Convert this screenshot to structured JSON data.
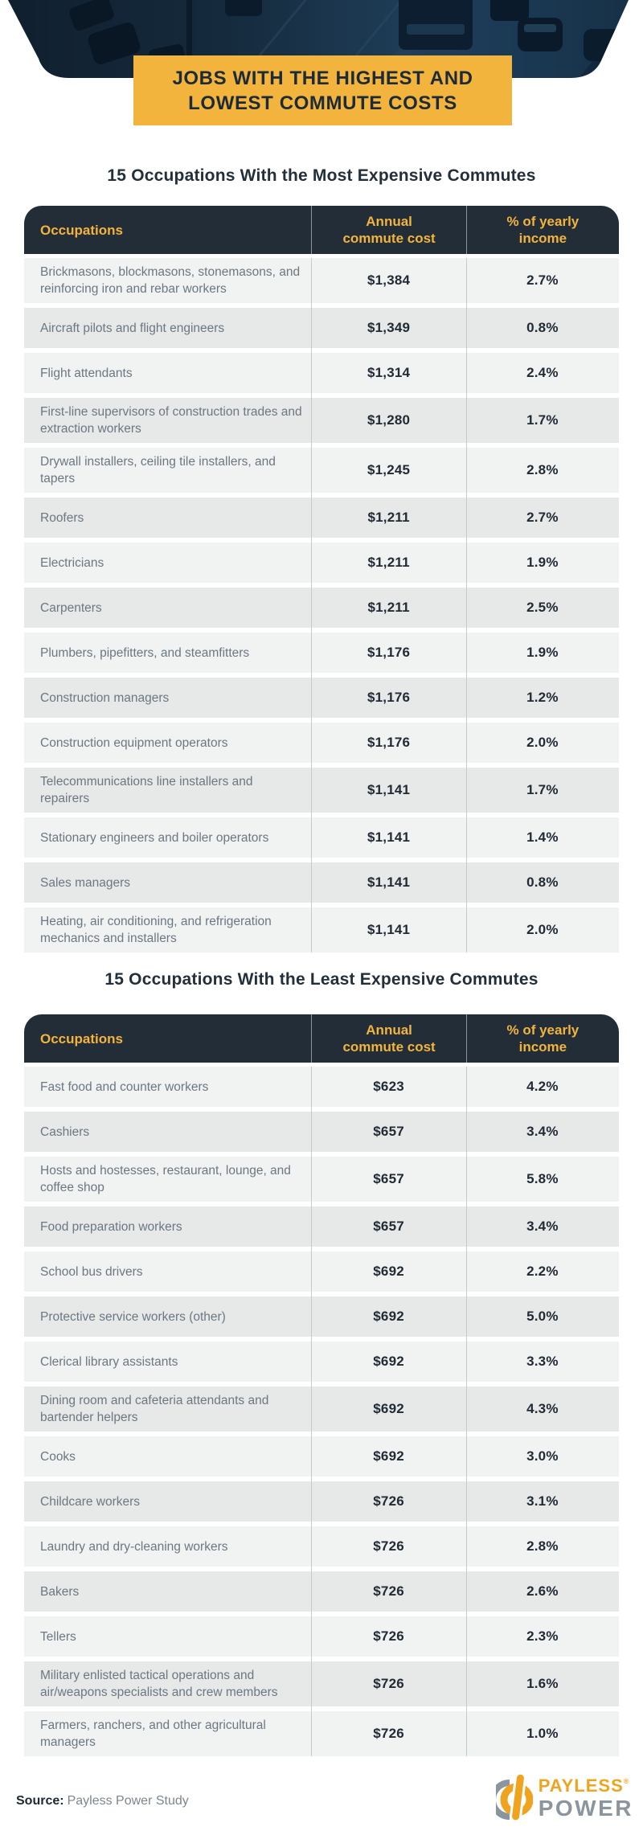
{
  "header": {
    "banner_line1": "JOBS WITH THE HIGHEST AND",
    "banner_line2": "LOWEST COMMUTE COSTS"
  },
  "colors": {
    "banner_yellow": "#F2B43D",
    "table_header_navy": "#222D37",
    "title_navy": "#232F3A",
    "row_light": "#F1F2F2",
    "row_dark": "#E7E8E8",
    "row_text_gray": "#6B7882",
    "value_navy": "#212B35",
    "logo_orange": "#F0A31E",
    "logo_gray": "#8B959D"
  },
  "tables": [
    {
      "title": "15 Occupations With the Most Expensive Commutes",
      "columns": [
        "Occupations",
        "Annual commute cost",
        "% of yearly income"
      ],
      "rows": [
        {
          "occupation": "Brickmasons, blockmasons, stonemasons, and reinforcing iron and rebar workers",
          "cost": "$1,384",
          "income_pct": "2.7%",
          "lines": 2
        },
        {
          "occupation": "Aircraft pilots and flight engineers",
          "cost": "$1,349",
          "income_pct": "0.8%",
          "lines": 1
        },
        {
          "occupation": "Flight attendants",
          "cost": "$1,314",
          "income_pct": "2.4%",
          "lines": 1
        },
        {
          "occupation": "First-line supervisors of construction trades and extraction workers",
          "cost": "$1,280",
          "income_pct": "1.7%",
          "lines": 2
        },
        {
          "occupation": "Drywall installers, ceiling tile installers, and tapers",
          "cost": "$1,245",
          "income_pct": "2.8%",
          "lines": 2
        },
        {
          "occupation": "Roofers",
          "cost": "$1,211",
          "income_pct": "2.7%",
          "lines": 1
        },
        {
          "occupation": "Electricians",
          "cost": "$1,211",
          "income_pct": "1.9%",
          "lines": 1
        },
        {
          "occupation": "Carpenters",
          "cost": "$1,211",
          "income_pct": "2.5%",
          "lines": 1
        },
        {
          "occupation": "Plumbers, pipefitters, and steamfitters",
          "cost": "$1,176",
          "income_pct": "1.9%",
          "lines": 1
        },
        {
          "occupation": "Construction managers",
          "cost": "$1,176",
          "income_pct": "1.2%",
          "lines": 1
        },
        {
          "occupation": "Construction equipment operators",
          "cost": "$1,176",
          "income_pct": "2.0%",
          "lines": 1
        },
        {
          "occupation": "Telecommunications line installers and repairers",
          "cost": "$1,141",
          "income_pct": "1.7%",
          "lines": 2
        },
        {
          "occupation": "Stationary engineers and boiler operators",
          "cost": "$1,141",
          "income_pct": "1.4%",
          "lines": 1
        },
        {
          "occupation": "Sales managers",
          "cost": "$1,141",
          "income_pct": "0.8%",
          "lines": 1
        },
        {
          "occupation": "Heating, air conditioning, and refrigeration mechanics and installers",
          "cost": "$1,141",
          "income_pct": "2.0%",
          "lines": 2
        }
      ]
    },
    {
      "title": "15 Occupations With the Least Expensive Commutes",
      "columns": [
        "Occupations",
        "Annual commute cost",
        "% of yearly income"
      ],
      "rows": [
        {
          "occupation": "Fast food and counter workers",
          "cost": "$623",
          "income_pct": "4.2%",
          "lines": 1
        },
        {
          "occupation": "Cashiers",
          "cost": "$657",
          "income_pct": "3.4%",
          "lines": 1
        },
        {
          "occupation": "Hosts and hostesses, restaurant, lounge, and coffee shop",
          "cost": "$657",
          "income_pct": "5.8%",
          "lines": 2
        },
        {
          "occupation": "Food preparation workers",
          "cost": "$657",
          "income_pct": "3.4%",
          "lines": 1
        },
        {
          "occupation": "School bus drivers",
          "cost": "$692",
          "income_pct": "2.2%",
          "lines": 1
        },
        {
          "occupation": "Protective service workers (other)",
          "cost": "$692",
          "income_pct": "5.0%",
          "lines": 1
        },
        {
          "occupation": "Clerical library assistants",
          "cost": "$692",
          "income_pct": "3.3%",
          "lines": 1
        },
        {
          "occupation": "Dining room and cafeteria attendants and bartender helpers",
          "cost": "$692",
          "income_pct": "4.3%",
          "lines": 2
        },
        {
          "occupation": "Cooks",
          "cost": "$692",
          "income_pct": "3.0%",
          "lines": 1
        },
        {
          "occupation": "Childcare workers",
          "cost": "$726",
          "income_pct": "3.1%",
          "lines": 1
        },
        {
          "occupation": "Laundry and dry-cleaning workers",
          "cost": "$726",
          "income_pct": "2.8%",
          "lines": 1
        },
        {
          "occupation": "Bakers",
          "cost": "$726",
          "income_pct": "2.6%",
          "lines": 1
        },
        {
          "occupation": "Tellers",
          "cost": "$726",
          "income_pct": "2.3%",
          "lines": 1
        },
        {
          "occupation": "Military enlisted tactical operations and air/weapons specialists and crew members",
          "cost": "$726",
          "income_pct": "1.6%",
          "lines": 2
        },
        {
          "occupation": "Farmers, ranchers, and other agricultural managers",
          "cost": "$726",
          "income_pct": "1.0%",
          "lines": 2
        }
      ]
    }
  ],
  "chart_data": [
    {
      "type": "table",
      "title": "15 Occupations With the Most Expensive Commutes",
      "columns": [
        "Occupations",
        "Annual commute cost ($)",
        "% of yearly income"
      ],
      "rows": [
        [
          "Brickmasons, blockmasons, stonemasons, and reinforcing iron and rebar workers",
          1384,
          2.7
        ],
        [
          "Aircraft pilots and flight engineers",
          1349,
          0.8
        ],
        [
          "Flight attendants",
          1314,
          2.4
        ],
        [
          "First-line supervisors of construction trades and extraction workers",
          1280,
          1.7
        ],
        [
          "Drywall installers, ceiling tile installers, and tapers",
          1245,
          2.8
        ],
        [
          "Roofers",
          1211,
          2.7
        ],
        [
          "Electricians",
          1211,
          1.9
        ],
        [
          "Carpenters",
          1211,
          2.5
        ],
        [
          "Plumbers, pipefitters, and steamfitters",
          1176,
          1.9
        ],
        [
          "Construction managers",
          1176,
          1.2
        ],
        [
          "Construction equipment operators",
          1176,
          2.0
        ],
        [
          "Telecommunications line installers and repairers",
          1141,
          1.7
        ],
        [
          "Stationary engineers and boiler operators",
          1141,
          1.4
        ],
        [
          "Sales managers",
          1141,
          0.8
        ],
        [
          "Heating, air conditioning, and refrigeration mechanics and installers",
          1141,
          2.0
        ]
      ]
    },
    {
      "type": "table",
      "title": "15 Occupations With the Least Expensive Commutes",
      "columns": [
        "Occupations",
        "Annual commute cost ($)",
        "% of yearly income"
      ],
      "rows": [
        [
          "Fast food and counter workers",
          623,
          4.2
        ],
        [
          "Cashiers",
          657,
          3.4
        ],
        [
          "Hosts and hostesses, restaurant, lounge, and coffee shop",
          657,
          5.8
        ],
        [
          "Food preparation workers",
          657,
          3.4
        ],
        [
          "School bus drivers",
          692,
          2.2
        ],
        [
          "Protective service workers (other)",
          692,
          5.0
        ],
        [
          "Clerical library assistants",
          692,
          3.3
        ],
        [
          "Dining room and cafeteria attendants and bartender helpers",
          692,
          4.3
        ],
        [
          "Cooks",
          692,
          3.0
        ],
        [
          "Childcare workers",
          726,
          3.1
        ],
        [
          "Laundry and dry-cleaning workers",
          726,
          2.8
        ],
        [
          "Bakers",
          726,
          2.6
        ],
        [
          "Tellers",
          726,
          2.3
        ],
        [
          "Military enlisted tactical operations and air/weapons specialists and crew members",
          726,
          1.6
        ],
        [
          "Farmers, ranchers, and other agricultural managers",
          726,
          1.0
        ]
      ]
    }
  ],
  "footer": {
    "source_label": "Source:",
    "source_text": "Payless Power Study",
    "logo_line1": "PAYLESS",
    "logo_reg": "®",
    "logo_line2": "POWER"
  }
}
